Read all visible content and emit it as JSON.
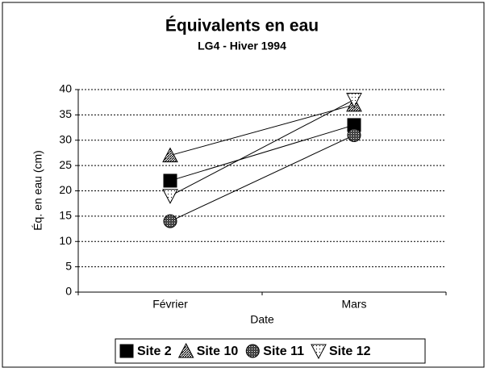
{
  "chart_data": {
    "type": "line",
    "title": "Équivalents en eau",
    "subtitle": "LG4 - Hiver 1994",
    "xlabel": "Date",
    "ylabel": "Éq. en eau (cm)",
    "categories": [
      "Février",
      "Mars"
    ],
    "series": [
      {
        "name": "Site 2",
        "color": "#000000",
        "marker": "square",
        "values": [
          22,
          33
        ]
      },
      {
        "name": "Site 10",
        "color": "#000000",
        "marker": "triangle",
        "values": [
          27,
          37
        ]
      },
      {
        "name": "Site 11",
        "color": "#000000",
        "marker": "circle",
        "values": [
          14,
          31
        ]
      },
      {
        "name": "Site 12",
        "color": "#000000",
        "marker": "triangle-down",
        "values": [
          19,
          38
        ]
      }
    ],
    "ylim": [
      0,
      40
    ],
    "yticks": [
      0,
      5,
      10,
      15,
      20,
      25,
      30,
      35,
      40
    ],
    "grid": true,
    "legend": "bottom"
  }
}
